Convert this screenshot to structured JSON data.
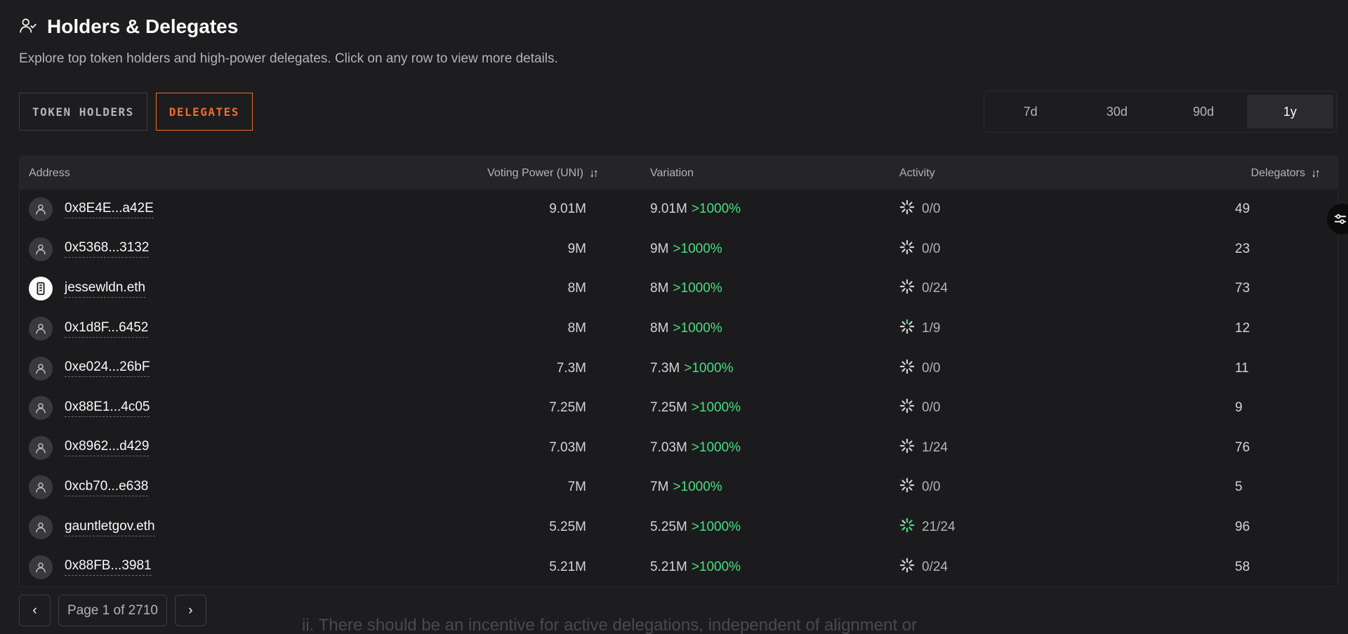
{
  "header": {
    "title": "Holders & Delegates",
    "subtitle": "Explore top token holders and high-power delegates. Click on any row to view more details."
  },
  "tabs": [
    {
      "label": "TOKEN HOLDERS",
      "active": false
    },
    {
      "label": "DELEGATES",
      "active": true
    }
  ],
  "periods": [
    {
      "label": "7d",
      "active": false
    },
    {
      "label": "30d",
      "active": false
    },
    {
      "label": "90d",
      "active": false
    },
    {
      "label": "1y",
      "active": true
    }
  ],
  "table": {
    "columns": {
      "address": "Address",
      "voting_power": "Voting Power (UNI)",
      "variation": "Variation",
      "activity": "Activity",
      "delegators": "Delegators"
    },
    "rows": [
      {
        "address": "0x8E4E...a42E",
        "avatar": "user-icon",
        "voting_power": "9.01M",
        "variation": "9.01M",
        "variation_pct": ">1000%",
        "activity": "0/0",
        "activity_ratio": 0,
        "delegators": "49"
      },
      {
        "address": "0x5368...3132",
        "avatar": "user-icon",
        "voting_power": "9M",
        "variation": "9M",
        "variation_pct": ">1000%",
        "activity": "0/0",
        "activity_ratio": 0,
        "delegators": "23"
      },
      {
        "address": "jessewldn.eth",
        "avatar": "ens-avatar",
        "voting_power": "8M",
        "variation": "8M",
        "variation_pct": ">1000%",
        "activity": "0/24",
        "activity_ratio": 0,
        "delegators": "73"
      },
      {
        "address": "0x1d8F...6452",
        "avatar": "user-icon",
        "voting_power": "8M",
        "variation": "8M",
        "variation_pct": ">1000%",
        "activity": "1/9",
        "activity_ratio": 0.111,
        "delegators": "12"
      },
      {
        "address": "0xe024...26bF",
        "avatar": "user-icon",
        "voting_power": "7.3M",
        "variation": "7.3M",
        "variation_pct": ">1000%",
        "activity": "0/0",
        "activity_ratio": 0,
        "delegators": "11"
      },
      {
        "address": "0x88E1...4c05",
        "avatar": "user-icon",
        "voting_power": "7.25M",
        "variation": "7.25M",
        "variation_pct": ">1000%",
        "activity": "0/0",
        "activity_ratio": 0,
        "delegators": "9"
      },
      {
        "address": "0x8962...d429",
        "avatar": "user-icon",
        "voting_power": "7.03M",
        "variation": "7.03M",
        "variation_pct": ">1000%",
        "activity": "1/24",
        "activity_ratio": 0.042,
        "delegators": "76"
      },
      {
        "address": "0xcb70...e638",
        "avatar": "user-icon",
        "voting_power": "7M",
        "variation": "7M",
        "variation_pct": ">1000%",
        "activity": "0/0",
        "activity_ratio": 0,
        "delegators": "5"
      },
      {
        "address": "gauntletgov.eth",
        "avatar": "user-icon",
        "voting_power": "5.25M",
        "variation": "5.25M",
        "variation_pct": ">1000%",
        "activity": "21/24",
        "activity_ratio": 0.875,
        "delegators": "96"
      },
      {
        "address": "0x88FB...3981",
        "avatar": "user-icon",
        "voting_power": "5.21M",
        "variation": "5.21M",
        "variation_pct": ">1000%",
        "activity": "0/24",
        "activity_ratio": 0,
        "delegators": "58"
      }
    ]
  },
  "pagination": {
    "prev_icon": "chevron-left-icon",
    "label": "Page 1 of 2710",
    "next_icon": "chevron-right-icon"
  },
  "background_text": "ii.    There should be an incentive for active delegations, independent of alignment or",
  "colors": {
    "accent": "#ec6d2e",
    "positive": "#4ade80",
    "background": "#1d1d1f"
  }
}
